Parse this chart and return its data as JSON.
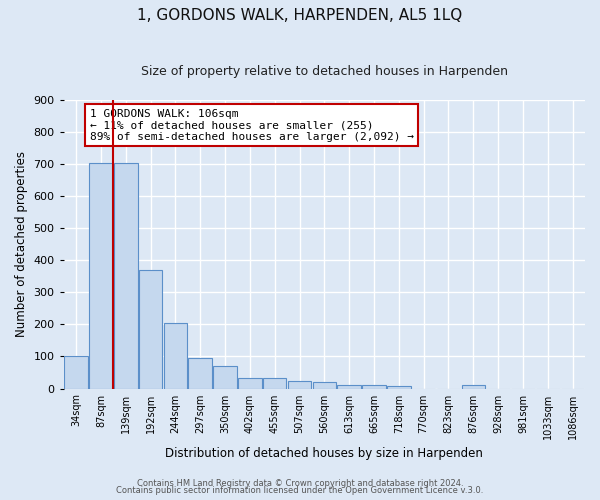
{
  "title": "1, GORDONS WALK, HARPENDEN, AL5 1LQ",
  "subtitle": "Size of property relative to detached houses in Harpenden",
  "xlabel": "Distribution of detached houses by size in Harpenden",
  "ylabel": "Number of detached properties",
  "bar_labels": [
    "34sqm",
    "87sqm",
    "139sqm",
    "192sqm",
    "244sqm",
    "297sqm",
    "350sqm",
    "402sqm",
    "455sqm",
    "507sqm",
    "560sqm",
    "613sqm",
    "665sqm",
    "718sqm",
    "770sqm",
    "823sqm",
    "876sqm",
    "928sqm",
    "981sqm",
    "1033sqm",
    "1086sqm"
  ],
  "bar_values": [
    100,
    705,
    705,
    370,
    205,
    95,
    70,
    33,
    33,
    25,
    22,
    10,
    10,
    7,
    0,
    0,
    10,
    0,
    0,
    0,
    0
  ],
  "bar_color": "#c5d8ee",
  "bar_edge_color": "#5b8fc9",
  "vline_color": "#c00000",
  "ylim": [
    0,
    900
  ],
  "yticks": [
    0,
    100,
    200,
    300,
    400,
    500,
    600,
    700,
    800,
    900
  ],
  "annotation_title": "1 GORDONS WALK: 106sqm",
  "annotation_line1": "← 11% of detached houses are smaller (255)",
  "annotation_line2": "89% of semi-detached houses are larger (2,092) →",
  "annotation_box_color": "#ffffff",
  "annotation_box_edge": "#c00000",
  "footer_line1": "Contains HM Land Registry data © Crown copyright and database right 2024.",
  "footer_line2": "Contains public sector information licensed under the Open Government Licence v.3.0.",
  "bg_color": "#dde8f5",
  "plot_bg_color": "#dde8f5",
  "grid_color": "#ffffff",
  "title_fontsize": 11,
  "subtitle_fontsize": 9
}
